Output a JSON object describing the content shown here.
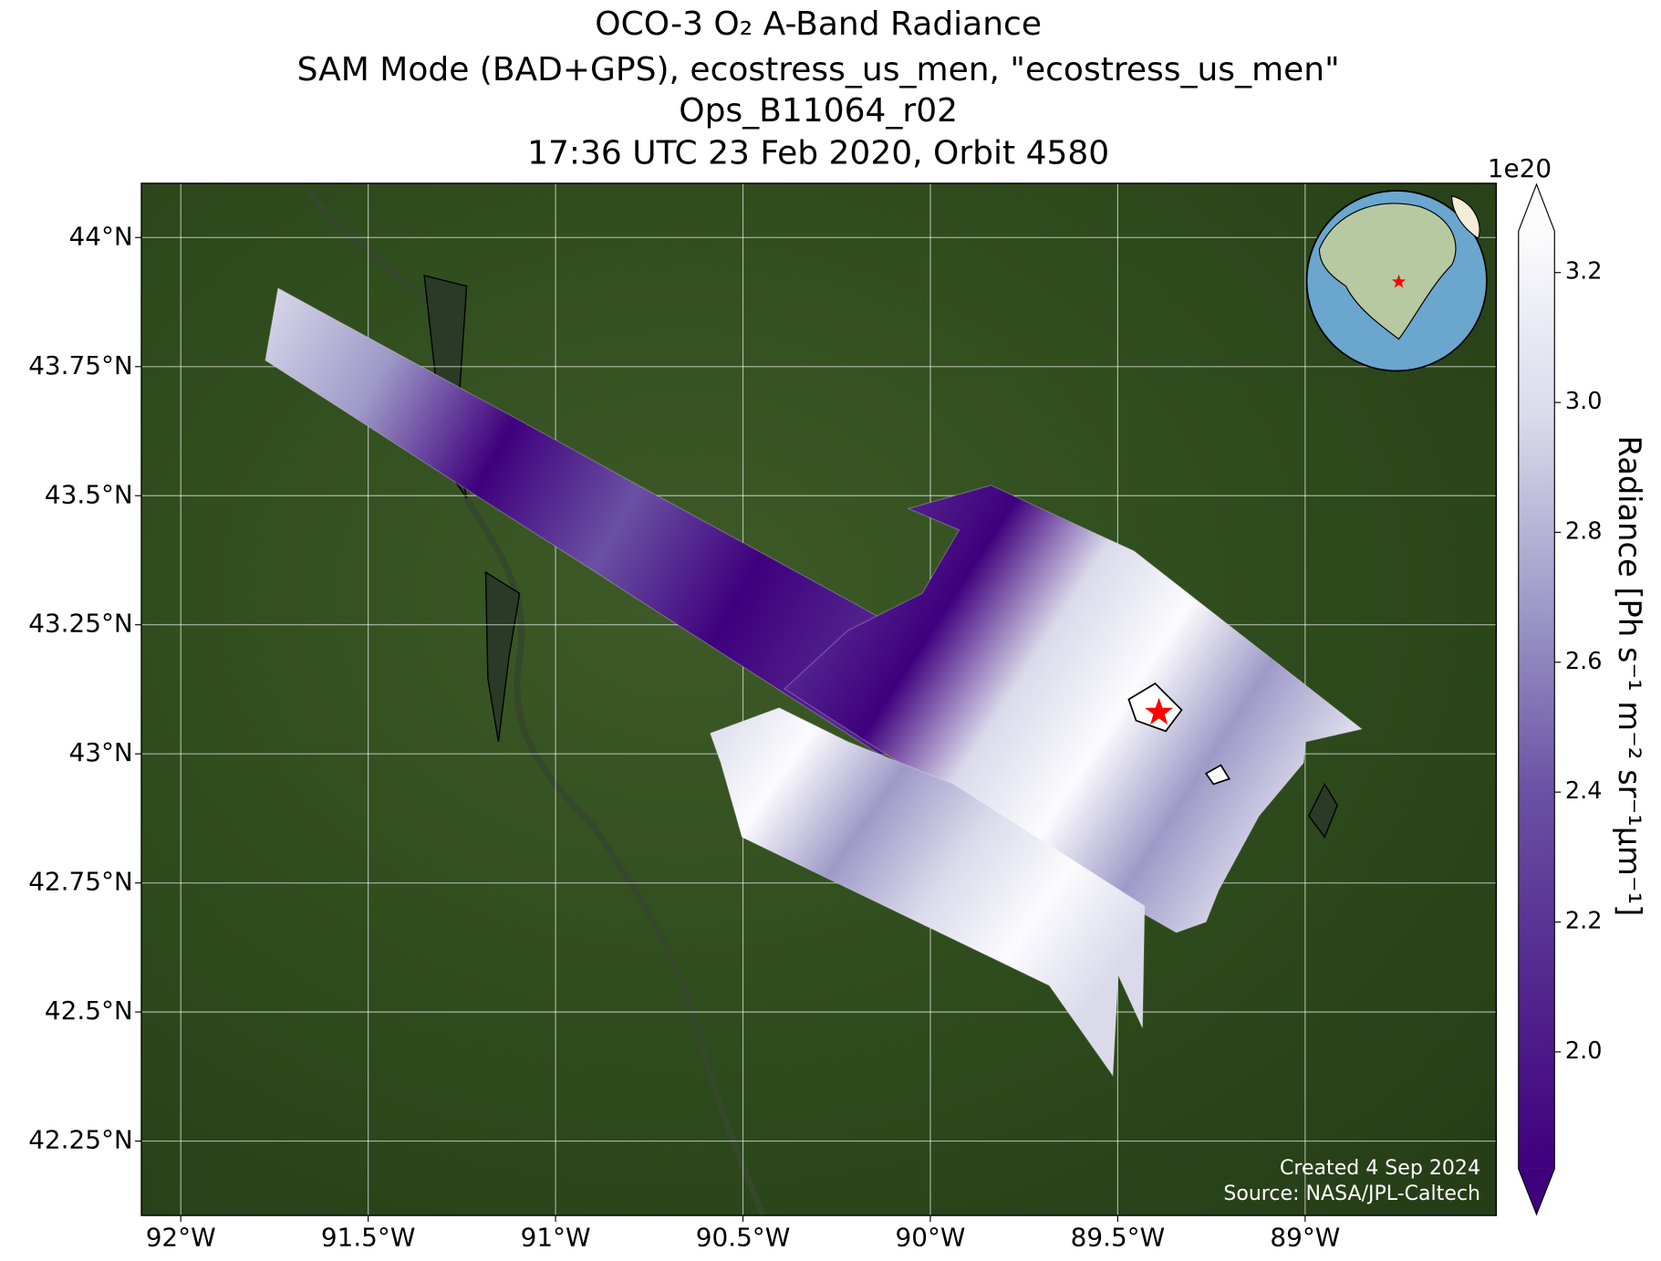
{
  "chart_data": {
    "type": "map",
    "title": [
      "OCO-3 O₂ A-Band Radiance",
      "SAM Mode (BAD+GPS), ecostress_us_men, \"ecostress_us_men\"",
      "Ops_B11064_r02",
      "17:36 UTC 23 Feb 2020, Orbit 4580"
    ],
    "xlim": [
      -92.105,
      -88.49
    ],
    "ylim": [
      42.106,
      44.105
    ],
    "xticks": [
      {
        "value": -92,
        "label": "92°W"
      },
      {
        "value": -91.5,
        "label": "91.5°W"
      },
      {
        "value": -91,
        "label": "91°W"
      },
      {
        "value": -90.5,
        "label": "90.5°W"
      },
      {
        "value": -90,
        "label": "90°W"
      },
      {
        "value": -89.5,
        "label": "89.5°W"
      },
      {
        "value": -89,
        "label": "89°W"
      }
    ],
    "yticks": [
      {
        "value": 42.25,
        "label": "42.25°N"
      },
      {
        "value": 42.5,
        "label": "42.5°N"
      },
      {
        "value": 42.75,
        "label": "42.75°N"
      },
      {
        "value": 43,
        "label": "43°N"
      },
      {
        "value": 43.25,
        "label": "43.25°N"
      },
      {
        "value": 43.5,
        "label": "43.5°N"
      },
      {
        "value": 43.75,
        "label": "43.75°N"
      },
      {
        "value": 44,
        "label": "44°N"
      }
    ],
    "grid": true,
    "target": {
      "lon": -89.39,
      "lat": 43.08
    },
    "colorbar": {
      "label": "Radiance [Ph s⁻¹ m⁻² sr⁻¹μm⁻¹]",
      "offset_label": "1e20",
      "lim": [
        1.82,
        3.264
      ],
      "ticks": [
        {
          "value": 2,
          "label": "2.0"
        },
        {
          "value": 2.2,
          "label": "2.2"
        },
        {
          "value": 2.4,
          "label": "2.4"
        },
        {
          "value": 2.6,
          "label": "2.6"
        },
        {
          "value": 2.8,
          "label": "2.8"
        },
        {
          "value": 3,
          "label": "3.0"
        },
        {
          "value": 3.2,
          "label": "3.2"
        }
      ],
      "colors": [
        "#3f007d",
        "#54278f",
        "#6a51a3",
        "#9e9ac8",
        "#dadaeb",
        "#fcfbfd"
      ]
    },
    "credits": [
      "Created 4 Sep 2024",
      "Source: NASA/JPL-Caltech"
    ]
  }
}
